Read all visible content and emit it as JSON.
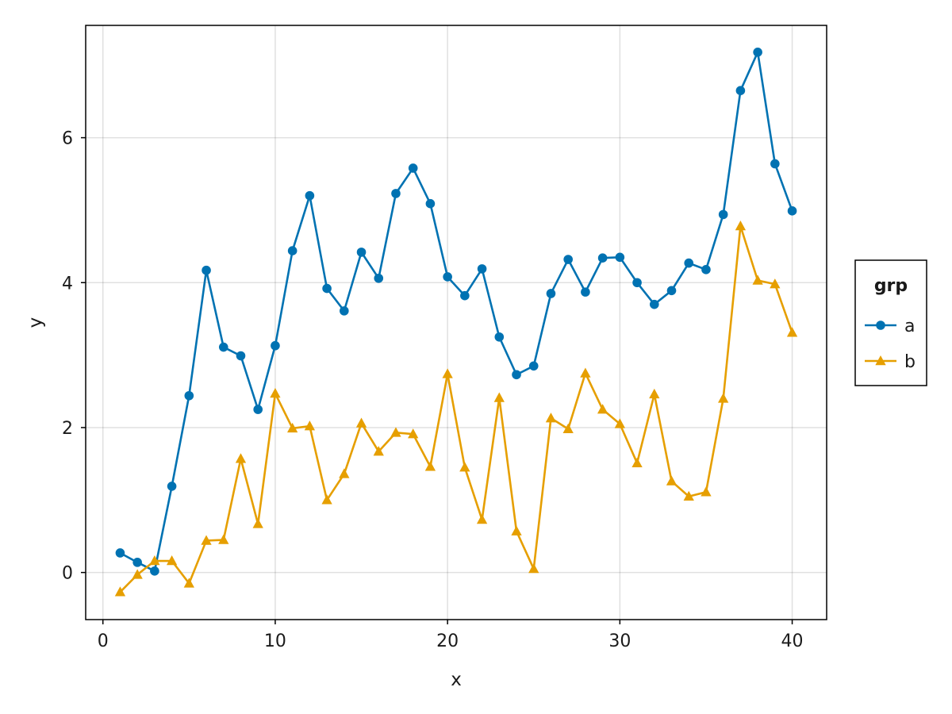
{
  "chart_data": {
    "type": "line",
    "xlabel": "x",
    "ylabel": "y",
    "xlim": [
      -1,
      42
    ],
    "ylim": [
      -0.65,
      7.55
    ],
    "xticks": [
      0,
      10,
      20,
      30,
      40
    ],
    "yticks": [
      0,
      2,
      4,
      6
    ],
    "grid": true,
    "legend_title": "grp",
    "legend_position": "right",
    "x": [
      1,
      2,
      3,
      4,
      5,
      6,
      7,
      8,
      9,
      10,
      11,
      12,
      13,
      14,
      15,
      16,
      17,
      18,
      19,
      20,
      21,
      22,
      23,
      24,
      25,
      26,
      27,
      28,
      29,
      30,
      31,
      32,
      33,
      34,
      35,
      36,
      37,
      38,
      39,
      40
    ],
    "series": [
      {
        "name": "a",
        "color": "#0072b2",
        "marker": "circle",
        "values": [
          0.27,
          0.14,
          0.02,
          1.19,
          2.44,
          4.17,
          3.11,
          2.99,
          2.25,
          3.13,
          4.44,
          5.2,
          3.92,
          3.61,
          4.42,
          4.06,
          5.23,
          5.58,
          5.09,
          4.08,
          3.82,
          4.19,
          3.25,
          2.73,
          2.85,
          3.85,
          4.32,
          3.87,
          4.34,
          4.35,
          4.0,
          3.7,
          3.89,
          4.27,
          4.18,
          4.94,
          6.65,
          7.18,
          5.64,
          4.99
        ]
      },
      {
        "name": "b",
        "color": "#e69f00",
        "marker": "triangle",
        "values": [
          -0.27,
          -0.03,
          0.16,
          0.16,
          -0.15,
          0.44,
          0.45,
          1.57,
          0.67,
          2.47,
          1.99,
          2.02,
          1.0,
          1.36,
          2.06,
          1.67,
          1.93,
          1.91,
          1.46,
          2.74,
          1.45,
          0.73,
          2.41,
          0.57,
          0.05,
          2.13,
          1.98,
          2.75,
          2.25,
          2.05,
          1.51,
          2.46,
          1.26,
          1.05,
          1.11,
          2.4,
          4.78,
          4.03,
          3.98,
          3.31
        ]
      }
    ]
  }
}
